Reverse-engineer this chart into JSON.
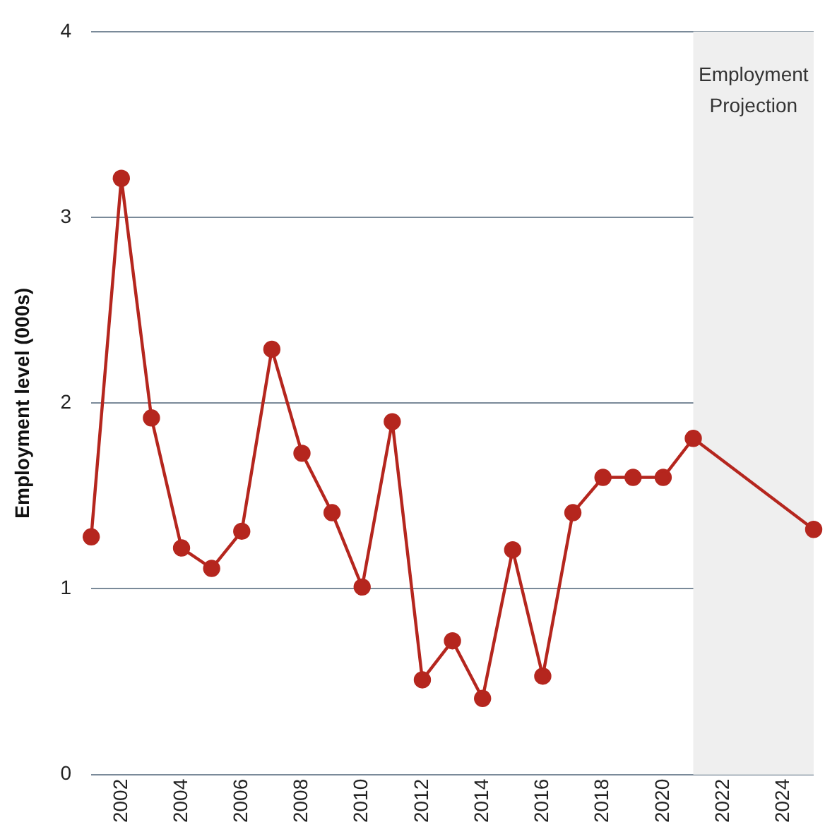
{
  "chart_data": {
    "type": "line",
    "ylabel": "Employment level (000s)",
    "x": [
      2001,
      2002,
      2003,
      2004,
      2005,
      2006,
      2007,
      2008,
      2009,
      2010,
      2011,
      2012,
      2013,
      2014,
      2015,
      2016,
      2017,
      2018,
      2019,
      2020,
      2021,
      2025
    ],
    "series": [
      {
        "color": "#b5261e",
        "values": [
          1.28,
          3.21,
          1.92,
          1.22,
          1.11,
          1.31,
          2.29,
          1.73,
          1.41,
          1.01,
          1.9,
          0.51,
          0.72,
          0.41,
          1.21,
          0.53,
          1.41,
          1.6,
          1.6,
          1.6,
          1.81,
          1.32
        ]
      }
    ],
    "xlim": [
      2001,
      2025
    ],
    "xticks": [
      2002,
      2004,
      2006,
      2008,
      2010,
      2012,
      2014,
      2016,
      2018,
      2020,
      2022,
      2024
    ],
    "ylim": [
      0,
      4
    ],
    "yticks": [
      0,
      1,
      2,
      3,
      4
    ],
    "bands": [
      {
        "axis": "x",
        "from": 2021,
        "to": 2025,
        "label": "Employment Projection",
        "color": "#efefef"
      }
    ],
    "grid": "y",
    "marker": "circle",
    "line_style": "solid",
    "legend": false
  }
}
